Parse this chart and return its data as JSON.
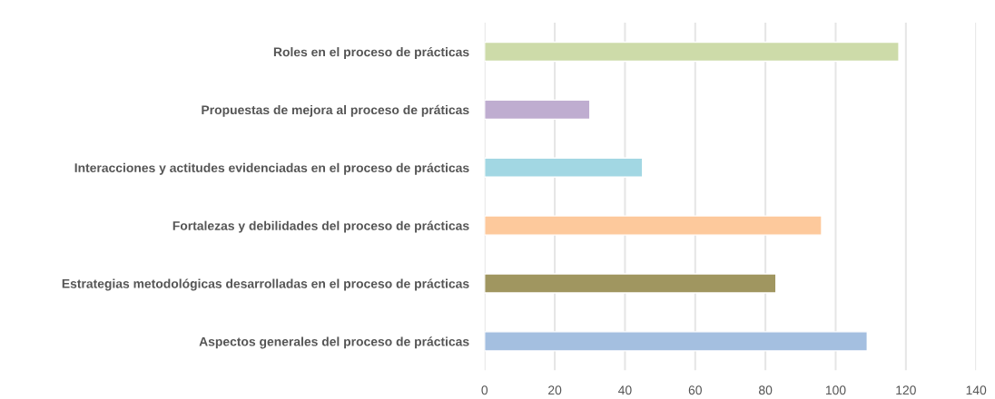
{
  "chart_data": {
    "type": "bar",
    "orientation": "horizontal",
    "categories": [
      "Roles en el proceso de prácticas",
      "Propuestas de mejora al proceso de práticas",
      "Interacciones y actitudes evidenciadas en el proceso de prácticas",
      "Fortalezas y debilidades del proceso de prácticas",
      "Estrategias metodológicas desarrolladas en el proceso de prácticas",
      "Aspectos generales del proceso de prácticas"
    ],
    "values": [
      118,
      30,
      45,
      96,
      83,
      109
    ],
    "colors": [
      "#cddba9",
      "#bfadd0",
      "#a2d7e3",
      "#fdc99c",
      "#a09660",
      "#a4bfe0"
    ],
    "xlim": [
      0,
      140
    ],
    "xticks": [
      0,
      20,
      40,
      60,
      80,
      100,
      120,
      140
    ],
    "grid": "x",
    "legend": false
  }
}
